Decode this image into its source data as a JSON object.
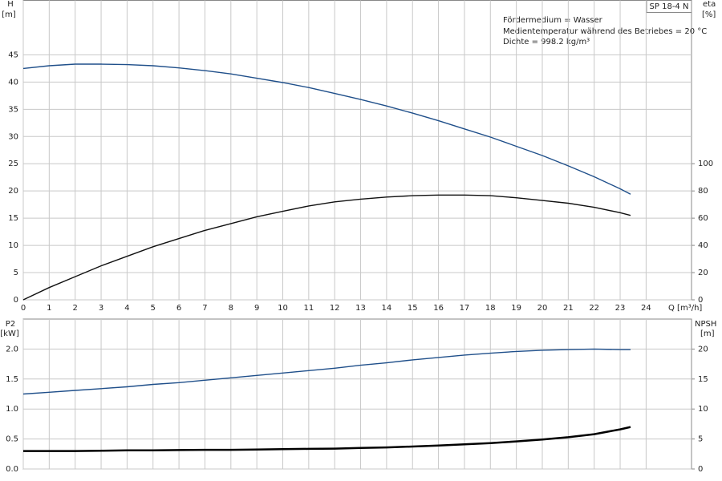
{
  "model": "SP 18-4 N",
  "annotations": [
    "Fördermedium = Wasser",
    "Medientemperatur während des Betriebes = 20 °C",
    "Dichte = 998.2 kg/m³"
  ],
  "chart_data": [
    {
      "type": "line",
      "ylabel": "H",
      "yunit": "[m]",
      "y2label": "eta",
      "y2unit": "[%]",
      "xlabel": "Q  [m³/h]",
      "xlim": [
        0,
        25.75
      ],
      "ylim": [
        0,
        55
      ],
      "y2lim": [
        0,
        220
      ],
      "xticks": [
        0,
        1,
        2,
        3,
        4,
        5,
        6,
        7,
        8,
        9,
        10,
        11,
        12,
        13,
        14,
        15,
        16,
        17,
        18,
        19,
        20,
        21,
        22,
        23,
        24
      ],
      "yticks": [
        0,
        5,
        10,
        15,
        20,
        25,
        30,
        35,
        40,
        45
      ],
      "y2ticks": [
        0,
        20,
        40,
        60,
        80,
        100
      ],
      "grid": true,
      "x": [
        0,
        1,
        2,
        3,
        4,
        5,
        6,
        7,
        8,
        9,
        10,
        11,
        12,
        13,
        14,
        15,
        16,
        17,
        18,
        19,
        20,
        21,
        22,
        23,
        23.4
      ],
      "series": [
        {
          "color": "#1f4f8a",
          "axis": "y",
          "values": [
            42.5,
            43.0,
            43.3,
            43.3,
            43.2,
            43.0,
            42.6,
            42.1,
            41.5,
            40.7,
            39.9,
            39.0,
            37.9,
            36.8,
            35.6,
            34.3,
            32.9,
            31.4,
            29.9,
            28.2,
            26.5,
            24.6,
            22.6,
            20.4,
            19.4
          ]
        },
        {
          "color": "#111111",
          "axis": "y2",
          "values": [
            0,
            9,
            17,
            25,
            32,
            39,
            45,
            51,
            56,
            61,
            65,
            69,
            72,
            74,
            75.5,
            76.5,
            77,
            77,
            76.5,
            75,
            73,
            71,
            68,
            64,
            62
          ]
        }
      ]
    },
    {
      "type": "line",
      "ylabel": "P2",
      "yunit": "[kW]",
      "y2label": "NPSH",
      "y2unit": "[m]",
      "xlim": [
        0,
        25.75
      ],
      "ylim": [
        0,
        2.5
      ],
      "y2lim": [
        0,
        25
      ],
      "yticks": [
        {
          "value": 0,
          "label": "0.0"
        },
        0.5,
        {
          "value": 1,
          "label": "1.0"
        },
        1.5,
        {
          "value": 2,
          "label": "2.0"
        }
      ],
      "y2ticks": [
        0,
        5,
        10,
        15,
        20
      ],
      "grid": true,
      "x": [
        0,
        1,
        2,
        3,
        4,
        5,
        6,
        7,
        8,
        9,
        10,
        11,
        12,
        13,
        14,
        15,
        16,
        17,
        18,
        19,
        20,
        21,
        22,
        23,
        23.4
      ],
      "series": [
        {
          "color": "#1f4f8a",
          "axis": "y",
          "values": [
            1.25,
            1.28,
            1.31,
            1.34,
            1.37,
            1.41,
            1.44,
            1.48,
            1.52,
            1.56,
            1.6,
            1.64,
            1.68,
            1.73,
            1.77,
            1.82,
            1.86,
            1.9,
            1.93,
            1.96,
            1.98,
            1.99,
            2.0,
            1.99,
            1.99
          ]
        },
        {
          "color": "#000000",
          "axis": "y2",
          "width": 2.5,
          "values": [
            3.0,
            3.0,
            3.0,
            3.05,
            3.1,
            3.1,
            3.15,
            3.2,
            3.2,
            3.25,
            3.3,
            3.35,
            3.4,
            3.5,
            3.6,
            3.75,
            3.9,
            4.1,
            4.3,
            4.6,
            4.9,
            5.3,
            5.8,
            6.6,
            7.0
          ]
        }
      ]
    }
  ]
}
